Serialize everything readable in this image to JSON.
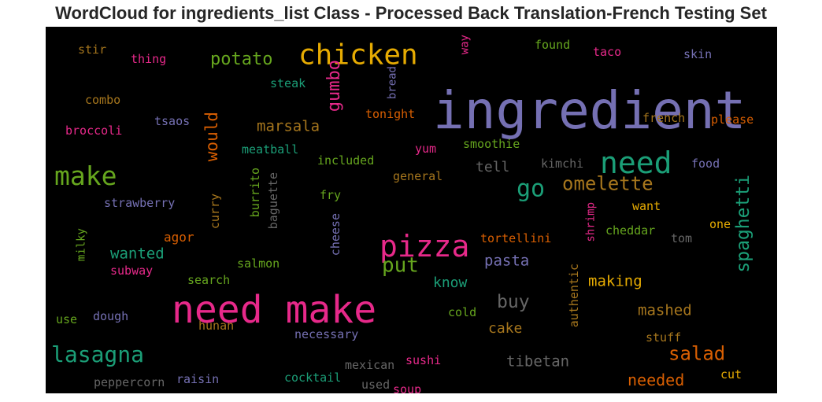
{
  "chart_data": {
    "type": "wordcloud",
    "title": "WordCloud for ingredients_list Class - Processed Back Translation-French Testing Set",
    "background": "#000000",
    "colormap": "Dark2",
    "words": [
      {
        "text": "ingredient",
        "weight": 1.0,
        "color": "#7570b3"
      },
      {
        "text": "need make",
        "weight": 0.72,
        "color": "#e7298a"
      },
      {
        "text": "pizza",
        "weight": 0.58,
        "color": "#e7298a"
      },
      {
        "text": "need",
        "weight": 0.55,
        "color": "#1b9e77"
      },
      {
        "text": "chicken",
        "weight": 0.52,
        "color": "#e6ab02"
      },
      {
        "text": "make",
        "weight": 0.5,
        "color": "#66a61e"
      },
      {
        "text": "lasagna",
        "weight": 0.45,
        "color": "#1b9e77"
      },
      {
        "text": "go",
        "weight": 0.45,
        "color": "#1b9e77"
      },
      {
        "text": "put",
        "weight": 0.4,
        "color": "#66a61e"
      },
      {
        "text": "salad",
        "weight": 0.38,
        "color": "#d95f02"
      },
      {
        "text": "omelette",
        "weight": 0.37,
        "color": "#a6761d"
      },
      {
        "text": "spaghetti",
        "weight": 0.36,
        "color": "#1b9e77"
      },
      {
        "text": "gumbo",
        "weight": 0.35,
        "color": "#e7298a"
      },
      {
        "text": "potato",
        "weight": 0.34,
        "color": "#66a61e"
      },
      {
        "text": "would",
        "weight": 0.34,
        "color": "#d95f02"
      },
      {
        "text": "buy",
        "weight": 0.34,
        "color": "#666666"
      },
      {
        "text": "needed",
        "weight": 0.3,
        "color": "#d95f02"
      },
      {
        "text": "marsala",
        "weight": 0.3,
        "color": "#a6761d"
      },
      {
        "text": "tibetan",
        "weight": 0.3,
        "color": "#666666"
      },
      {
        "text": "mashed",
        "weight": 0.29,
        "color": "#a6761d"
      },
      {
        "text": "making",
        "weight": 0.29,
        "color": "#e6ab02"
      },
      {
        "text": "pasta",
        "weight": 0.29,
        "color": "#7570b3"
      },
      {
        "text": "wanted",
        "weight": 0.29,
        "color": "#1b9e77"
      },
      {
        "text": "cake",
        "weight": 0.28,
        "color": "#a6761d"
      },
      {
        "text": "know",
        "weight": 0.28,
        "color": "#1b9e77"
      },
      {
        "text": "tell",
        "weight": 0.28,
        "color": "#666666"
      },
      {
        "text": "agor",
        "weight": 0.27,
        "color": "#d95f02"
      },
      {
        "text": "strawberry",
        "weight": 0.24,
        "color": "#7570b3"
      },
      {
        "text": "tortellini",
        "weight": 0.24,
        "color": "#d95f02"
      },
      {
        "text": "smoothie",
        "weight": 0.24,
        "color": "#66a61e"
      },
      {
        "text": "included",
        "weight": 0.24,
        "color": "#66a61e"
      },
      {
        "text": "meatball",
        "weight": 0.24,
        "color": "#1b9e77"
      },
      {
        "text": "broccoli",
        "weight": 0.24,
        "color": "#e7298a"
      },
      {
        "text": "combo",
        "weight": 0.24,
        "color": "#a6761d"
      },
      {
        "text": "tsaos",
        "weight": 0.24,
        "color": "#7570b3"
      },
      {
        "text": "steak",
        "weight": 0.24,
        "color": "#1b9e77"
      },
      {
        "text": "tonight",
        "weight": 0.24,
        "color": "#d95f02"
      },
      {
        "text": "french",
        "weight": 0.24,
        "color": "#a6761d"
      },
      {
        "text": "please",
        "weight": 0.24,
        "color": "#d95f02"
      },
      {
        "text": "kimchi",
        "weight": 0.24,
        "color": "#666666"
      },
      {
        "text": "food",
        "weight": 0.24,
        "color": "#7570b3"
      },
      {
        "text": "general",
        "weight": 0.24,
        "color": "#a6761d"
      },
      {
        "text": "yum",
        "weight": 0.24,
        "color": "#e7298a"
      },
      {
        "text": "fry",
        "weight": 0.24,
        "color": "#66a61e"
      },
      {
        "text": "want",
        "weight": 0.24,
        "color": "#e6ab02"
      },
      {
        "text": "one",
        "weight": 0.24,
        "color": "#e6ab02"
      },
      {
        "text": "cheddar",
        "weight": 0.24,
        "color": "#66a61e"
      },
      {
        "text": "tom",
        "weight": 0.24,
        "color": "#666666"
      },
      {
        "text": "salmon",
        "weight": 0.24,
        "color": "#66a61e"
      },
      {
        "text": "subway",
        "weight": 0.24,
        "color": "#e7298a"
      },
      {
        "text": "search",
        "weight": 0.24,
        "color": "#66a61e"
      },
      {
        "text": "dough",
        "weight": 0.24,
        "color": "#7570b3"
      },
      {
        "text": "use",
        "weight": 0.24,
        "color": "#66a61e"
      },
      {
        "text": "hunan",
        "weight": 0.24,
        "color": "#a6761d"
      },
      {
        "text": "necessary",
        "weight": 0.24,
        "color": "#7570b3"
      },
      {
        "text": "cold",
        "weight": 0.24,
        "color": "#66a61e"
      },
      {
        "text": "stuff",
        "weight": 0.24,
        "color": "#a6761d"
      },
      {
        "text": "cut",
        "weight": 0.24,
        "color": "#e6ab02"
      },
      {
        "text": "sushi",
        "weight": 0.24,
        "color": "#e7298a"
      },
      {
        "text": "mexican",
        "weight": 0.24,
        "color": "#666666"
      },
      {
        "text": "cocktail",
        "weight": 0.24,
        "color": "#1b9e77"
      },
      {
        "text": "used",
        "weight": 0.24,
        "color": "#666666"
      },
      {
        "text": "soup",
        "weight": 0.24,
        "color": "#e7298a"
      },
      {
        "text": "raisin",
        "weight": 0.24,
        "color": "#7570b3"
      },
      {
        "text": "peppercorn",
        "weight": 0.24,
        "color": "#666666"
      },
      {
        "text": "stir",
        "weight": 0.22,
        "color": "#a6761d"
      },
      {
        "text": "thing",
        "weight": 0.22,
        "color": "#e7298a"
      },
      {
        "text": "taco",
        "weight": 0.22,
        "color": "#e7298a"
      },
      {
        "text": "found",
        "weight": 0.22,
        "color": "#66a61e"
      },
      {
        "text": "skin",
        "weight": 0.22,
        "color": "#7570b3"
      },
      {
        "text": "way",
        "weight": 0.2,
        "color": "#e7298a"
      },
      {
        "text": "bread",
        "weight": 0.2,
        "color": "#7570b3"
      },
      {
        "text": "burrito",
        "weight": 0.22,
        "color": "#66a61e"
      },
      {
        "text": "baguette",
        "weight": 0.22,
        "color": "#666666"
      },
      {
        "text": "curry",
        "weight": 0.22,
        "color": "#a6761d"
      },
      {
        "text": "cheese",
        "weight": 0.22,
        "color": "#7570b3"
      },
      {
        "text": "milky",
        "weight": 0.2,
        "color": "#66a61e"
      },
      {
        "text": "shrimp",
        "weight": 0.2,
        "color": "#e7298a"
      },
      {
        "text": "authentic",
        "weight": 0.22,
        "color": "#a6761d"
      }
    ]
  }
}
